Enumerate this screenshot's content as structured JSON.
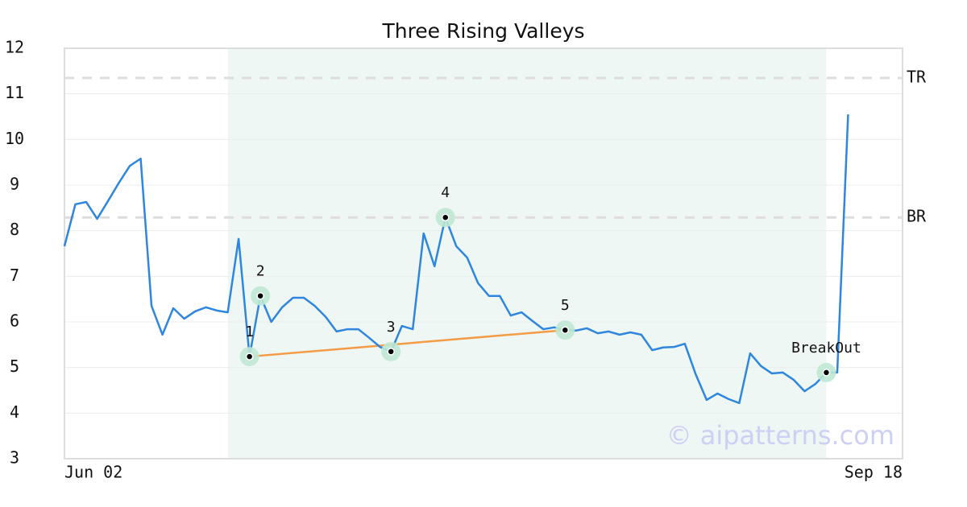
{
  "chart_data": {
    "type": "line",
    "title": "Three Rising Valleys",
    "categories": [
      "Jun 02",
      null,
      null,
      null,
      null,
      null,
      null,
      null,
      null,
      null,
      null,
      null,
      null,
      null,
      null,
      null,
      null,
      null,
      null,
      null,
      null,
      null,
      null,
      null,
      null,
      null,
      null,
      null,
      null,
      null,
      null,
      null,
      null,
      null,
      null,
      null,
      null,
      null,
      null,
      null,
      null,
      null,
      null,
      null,
      null,
      null,
      null,
      null,
      null,
      null,
      null,
      null,
      null,
      null,
      null,
      null,
      null,
      null,
      null,
      null,
      null,
      null,
      null,
      null,
      null,
      null,
      null,
      null,
      null,
      null,
      null,
      null,
      null,
      null,
      null,
      null,
      null,
      "Sep 18"
    ],
    "series": [
      {
        "color": "#2e86de",
        "values": [
          7.66,
          8.58,
          8.63,
          8.26,
          8.65,
          9.05,
          9.42,
          9.58,
          6.35,
          5.72,
          6.3,
          6.07,
          6.23,
          6.32,
          6.25,
          6.21,
          7.82,
          5.24,
          6.57,
          6.0,
          6.32,
          6.53,
          6.53,
          6.35,
          6.11,
          5.79,
          5.84,
          5.84,
          5.65,
          5.45,
          5.35,
          5.91,
          5.84,
          7.94,
          7.22,
          8.29,
          7.66,
          7.41,
          6.85,
          6.57,
          6.57,
          6.14,
          6.21,
          6.02,
          5.84,
          5.88,
          5.82,
          5.81,
          5.86,
          5.75,
          5.79,
          5.72,
          5.77,
          5.72,
          5.38,
          5.44,
          5.45,
          5.52,
          4.85,
          4.29,
          4.43,
          4.31,
          4.22,
          5.31,
          5.03,
          4.87,
          4.89,
          4.73,
          4.48,
          4.64,
          4.89,
          4.89,
          10.55,
          null,
          null,
          null,
          null,
          null
        ]
      }
    ],
    "ylim": [
      3,
      12
    ],
    "yticks": [
      3,
      4,
      5,
      6,
      7,
      8,
      9,
      10,
      11,
      12
    ],
    "grid": true,
    "levels": [
      {
        "label": "TR",
        "value": 11.35
      },
      {
        "label": "BR",
        "value": 8.29
      }
    ],
    "pivots": [
      {
        "label": "1",
        "index": 17
      },
      {
        "label": "2",
        "index": 18
      },
      {
        "label": "3",
        "index": 30
      },
      {
        "label": "4",
        "index": 35
      },
      {
        "label": "5",
        "index": 46
      },
      {
        "label": "BreakOut",
        "index": 70
      }
    ],
    "highlight": [
      15,
      70
    ],
    "trendline_color": "#f39c45",
    "watermark": "© aipatterns.com"
  }
}
